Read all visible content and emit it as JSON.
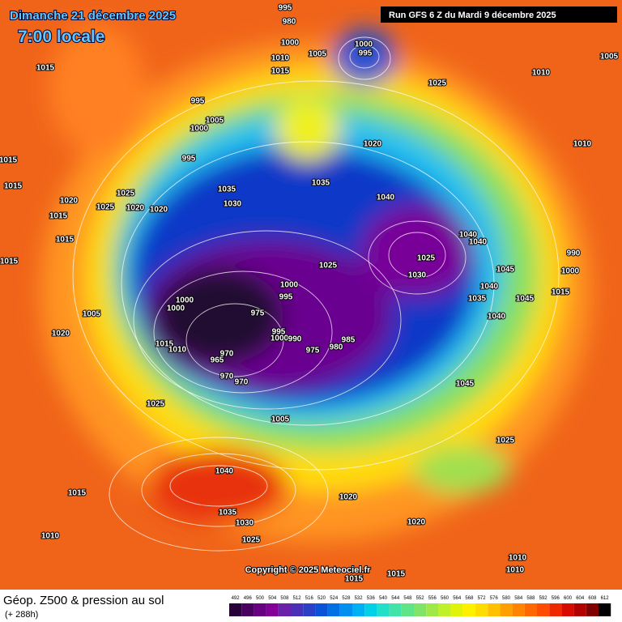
{
  "header": {
    "date": "Dimanche 21 décembre 2025",
    "time": "7:00 locale",
    "run": "Run GFS 6 Z du Mardi 9 décembre 2025"
  },
  "copyright": "Copyright © 2025 Meteociel.fr",
  "footer": {
    "title": "Géop. Z500 & pression au sol",
    "lead": "(+ 288h)"
  },
  "scale": {
    "values": [
      492,
      496,
      500,
      504,
      508,
      512,
      516,
      520,
      524,
      528,
      532,
      536,
      540,
      544,
      548,
      552,
      556,
      560,
      564,
      568,
      572,
      576,
      580,
      584,
      588,
      592,
      596,
      600,
      604,
      608,
      612
    ],
    "colors": [
      "#2a0038",
      "#4a0060",
      "#680080",
      "#820098",
      "#6a20a8",
      "#4a30b8",
      "#2a40c8",
      "#0a52d8",
      "#0070e4",
      "#0090f0",
      "#00b0f4",
      "#00d0e8",
      "#20e0c8",
      "#40e4a8",
      "#60e488",
      "#80e468",
      "#a0e848",
      "#c0f028",
      "#e0f408",
      "#fff000",
      "#ffdc00",
      "#ffc000",
      "#ffa000",
      "#ff8400",
      "#ff6800",
      "#ff4c00",
      "#f02800",
      "#d80a00",
      "#b00000",
      "#800000",
      "#000000"
    ]
  },
  "pressure_labels": [
    995,
    980,
    1000,
    1010,
    1015,
    1005,
    1000,
    995,
    1025,
    1010,
    1005,
    1015,
    995,
    1005,
    1000,
    995,
    1015,
    1025,
    1035,
    1030,
    1020,
    1015,
    1025,
    1020,
    1020,
    1015,
    1015,
    1035,
    1040,
    1020,
    1010,
    1040,
    1040,
    1025,
    1030,
    1025,
    1000,
    995,
    975,
    1000,
    1000,
    1005,
    1020,
    1015,
    1010,
    995,
    1000,
    990,
    985,
    980,
    975,
    970,
    965,
    970,
    970,
    1045,
    1040,
    1035,
    1045,
    1040,
    1015,
    990,
    1000,
    1045,
    1025,
    1005,
    1025,
    1040,
    1015,
    1035,
    1030,
    1025,
    1020,
    1020,
    1010,
    1015,
    1015,
    1010,
    1010,
    1015
  ]
}
